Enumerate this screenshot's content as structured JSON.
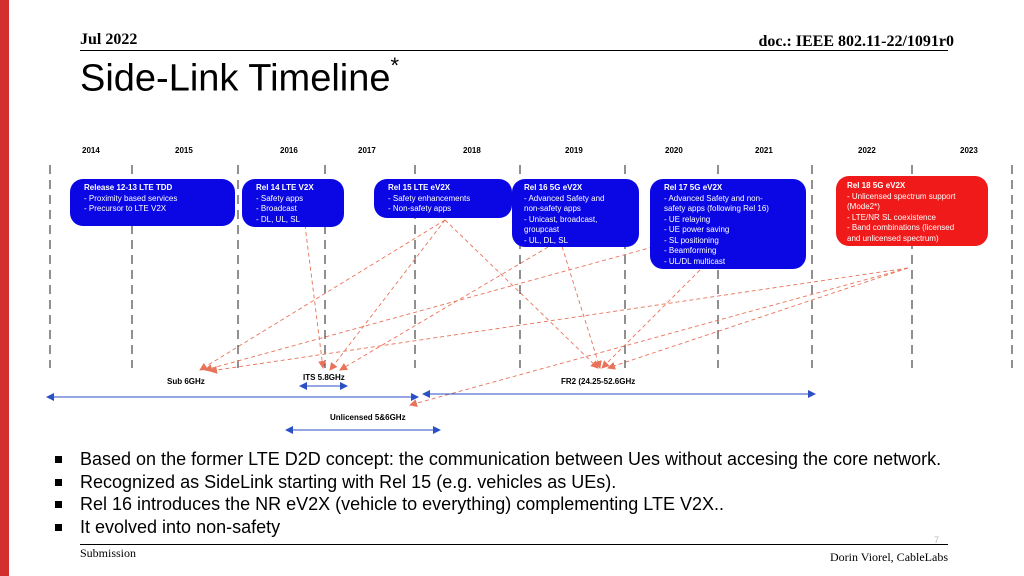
{
  "header": {
    "date": "Jul 2022",
    "doc_id": "doc.: IEEE 802.11-22/1091r0"
  },
  "title": {
    "text": "Side-Link Timeline",
    "marker": "*"
  },
  "timeline": {
    "years": [
      "2014",
      "2015",
      "2016",
      "2017",
      "2018",
      "2019",
      "2020",
      "2021",
      "2022",
      "2023"
    ],
    "releases": [
      {
        "title": "Release 12-13 LTE TDD",
        "items": [
          "- Proximity based services",
          "- Precursor to LTE V2X"
        ],
        "color": "#0a07e4"
      },
      {
        "title": "Rel 14 LTE V2X",
        "items": [
          "- Safety apps",
          "- Broadcast",
          "- DL, UL, SL"
        ],
        "color": "#0a07e4"
      },
      {
        "title": "Rel 15 LTE eV2X",
        "items": [
          "- Safety enhancements",
          "- Non-safety apps"
        ],
        "color": "#0a07e4"
      },
      {
        "title": "Rel 16 5G eV2X",
        "items": [
          "- Advanced Safety and",
          "non-safety apps",
          "- Unicast, broadcast,",
          "groupcast",
          "- UL, DL, SL"
        ],
        "color": "#0a07e4"
      },
      {
        "title": "Rel 17 5G eV2X",
        "items": [
          "- Advanced Safety and non-",
          "safety apps (following Rel 16)",
          "- UE relaying",
          "- UE power saving",
          "- SL positioning",
          "- Beamforming",
          "- UL/DL multicast"
        ],
        "color": "#0a07e4"
      },
      {
        "title": "Rel 18 5G eV2X",
        "items": [
          "- Unlicensed spectrum support",
          "(Mode2*)",
          "- LTE/NR SL coexistence",
          "- Band combinations (licensed",
          "and unlicensed spectrum)"
        ],
        "color": "#f01a1a"
      }
    ],
    "bands": [
      {
        "label": "Sub 6GHz"
      },
      {
        "label": "ITS 5.8GHz"
      },
      {
        "label": "FR2 (24.25-52.6GHz"
      },
      {
        "label": "Unlicensed 5&6GHz"
      }
    ]
  },
  "bullets": [
    "Based on the former LTE D2D concept: the communication between Ues without accesing the core network.",
    "Recognized as SideLink starting with Rel 15 (e.g. vehicles as UEs).",
    "Rel 16 introduces the NR eV2X (vehicle to everything) complementing LTE V2X..",
    "It evolved into non-safety"
  ],
  "footer": {
    "left": "Submission",
    "right": "Dorin Viorel, CableLabs",
    "page": "7"
  }
}
